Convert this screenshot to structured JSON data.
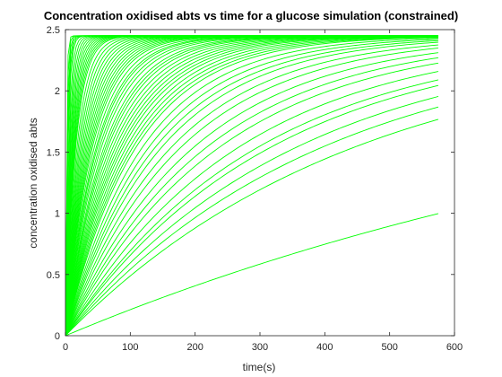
{
  "chart_data": {
    "type": "line",
    "title": "Concentration oxidised abts vs time for a glucose simulation (constrained)",
    "xlabel": "time(s)",
    "ylabel": "concentration oxidised abts",
    "xlim": [
      0,
      600
    ],
    "ylim": [
      0,
      2.5
    ],
    "x_ticks": [
      "0",
      "100",
      "200",
      "300",
      "400",
      "500",
      "600"
    ],
    "y_ticks": [
      "0",
      "0.5",
      "1",
      "1.5",
      "2",
      "2.5"
    ],
    "grid": false,
    "legend": "none",
    "line_color": "#00ff00",
    "curve_model": "y = ymax * (1 - exp(-t / tau))",
    "ymax": 2.45,
    "t_end": 575,
    "tau_values": [
      1.5,
      2,
      2.5,
      3,
      3.5,
      4,
      5,
      6,
      7,
      8,
      9,
      10,
      11,
      12,
      13,
      14,
      15,
      16,
      18,
      20,
      22,
      24,
      26,
      28,
      30,
      32,
      34,
      36,
      38,
      40,
      42,
      45,
      48,
      50,
      53,
      56,
      60,
      63,
      66,
      70,
      74,
      78,
      82,
      86,
      90,
      95,
      100,
      105,
      110,
      120,
      130,
      140,
      150,
      165,
      180,
      200,
      220,
      240,
      270,
      300,
      320,
      360,
      400,
      450,
      1100
    ]
  }
}
